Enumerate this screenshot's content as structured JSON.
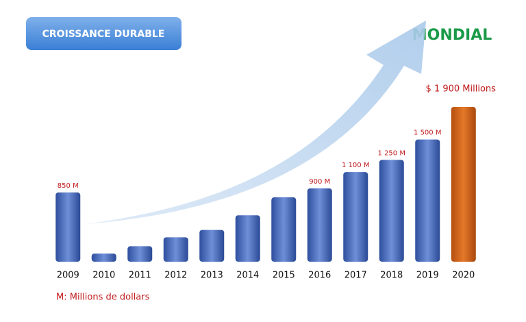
{
  "header": {
    "button": "CROISSANCE DURABLE",
    "region": "MONDIAL"
  },
  "chart_data": {
    "type": "bar",
    "categories": [
      "2009",
      "2010",
      "2011",
      "2012",
      "2013",
      "2014",
      "2015",
      "2016",
      "2017",
      "2018",
      "2019",
      "2020"
    ],
    "values": [
      850,
      100,
      190,
      300,
      390,
      570,
      790,
      900,
      1100,
      1250,
      1500,
      1900
    ],
    "value_labels": [
      "850 M",
      null,
      null,
      null,
      null,
      null,
      null,
      "900 M",
      "1 100 M",
      "1 250 M",
      "1 500 M",
      "$ 1 900 Millions"
    ],
    "colors": [
      "blue",
      "blue",
      "blue",
      "blue",
      "blue",
      "blue",
      "blue",
      "blue",
      "blue",
      "blue",
      "blue",
      "orange"
    ],
    "note": "M: Millions de dollars"
  }
}
